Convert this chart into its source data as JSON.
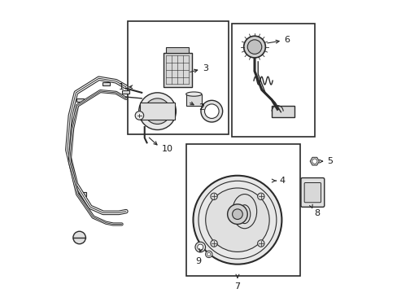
{
  "bg_color": "#ffffff",
  "line_color": "#2a2a2a",
  "label_color": "#1a1a1a"
}
